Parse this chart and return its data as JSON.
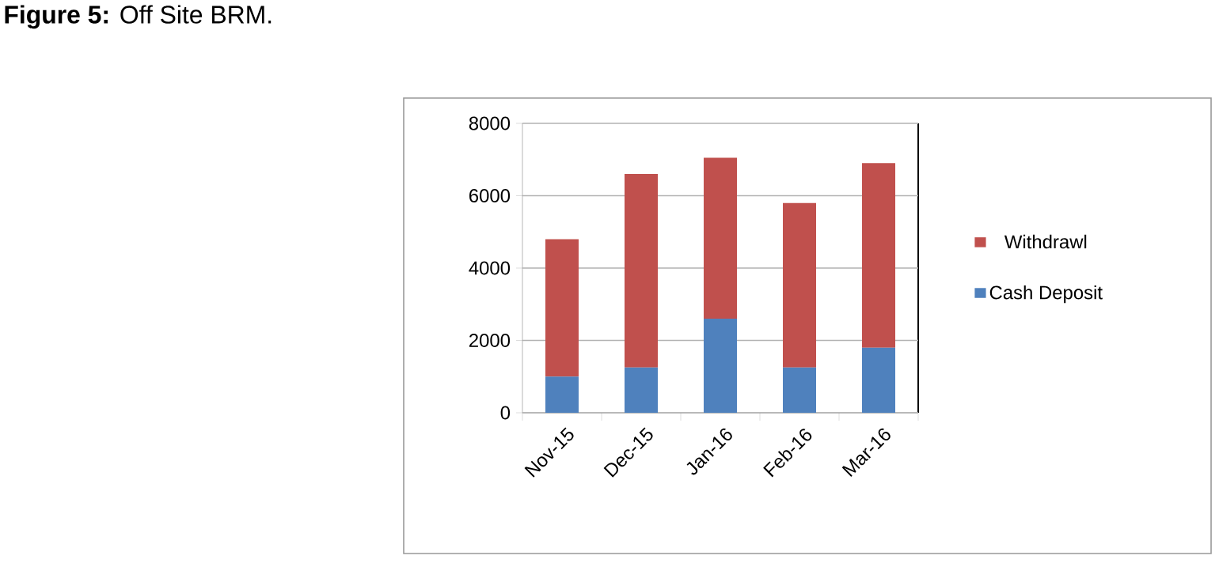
{
  "chart_data": {
    "type": "bar",
    "stacked": true,
    "title": "**Figure 5:** Off Site BRM.",
    "categories": [
      "Nov-15",
      "Dec-15",
      "Jan-16",
      "Feb-16",
      "Mar-16"
    ],
    "series": [
      {
        "name": "Cash Deposit",
        "color": "#4f81bd",
        "values": [
          1000,
          1250,
          2600,
          1250,
          1800
        ]
      },
      {
        "name": "Withdrawl",
        "color": "#c0504d",
        "values": [
          3800,
          5350,
          4450,
          4550,
          5100
        ]
      }
    ],
    "ylim": [
      0,
      8000
    ],
    "yticks": [
      0,
      2000,
      4000,
      6000,
      8000
    ],
    "grid": "y",
    "legend": "right"
  }
}
